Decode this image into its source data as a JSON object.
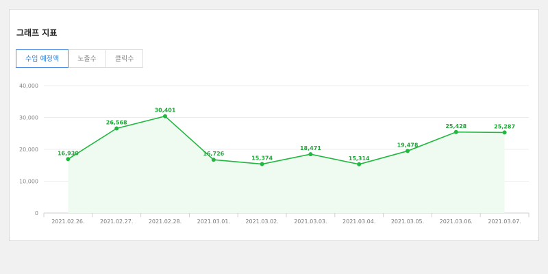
{
  "panel": {
    "title": "그래프 지표",
    "tabs": [
      {
        "label": "수입 예정액",
        "active": true
      },
      {
        "label": "노출수",
        "active": false
      },
      {
        "label": "클릭수",
        "active": false
      }
    ]
  },
  "colors": {
    "line": "#21b83f",
    "area": "#effaf0",
    "active_tab": "#4a90e2"
  },
  "chart_data": {
    "type": "line",
    "title": "",
    "xlabel": "",
    "ylabel": "",
    "ylim": [
      0,
      40000
    ],
    "yticks": [
      "0",
      "10,000",
      "20,000",
      "30,000",
      "40,000"
    ],
    "ytick_values": [
      0,
      10000,
      20000,
      30000,
      40000
    ],
    "categories": [
      "2021.02.26.",
      "2021.02.27.",
      "2021.02.28.",
      "2021.03.01.",
      "2021.03.02.",
      "2021.03.03.",
      "2021.03.04.",
      "2021.03.05.",
      "2021.03.06.",
      "2021.03.07."
    ],
    "values": [
      16930,
      26568,
      30401,
      16726,
      15374,
      18471,
      15314,
      19478,
      25428,
      25287
    ],
    "value_labels": [
      "16,930",
      "26,568",
      "30,401",
      "16,726",
      "15,374",
      "18,471",
      "15,314",
      "19,478",
      "25,428",
      "25,287"
    ],
    "grid": true
  }
}
